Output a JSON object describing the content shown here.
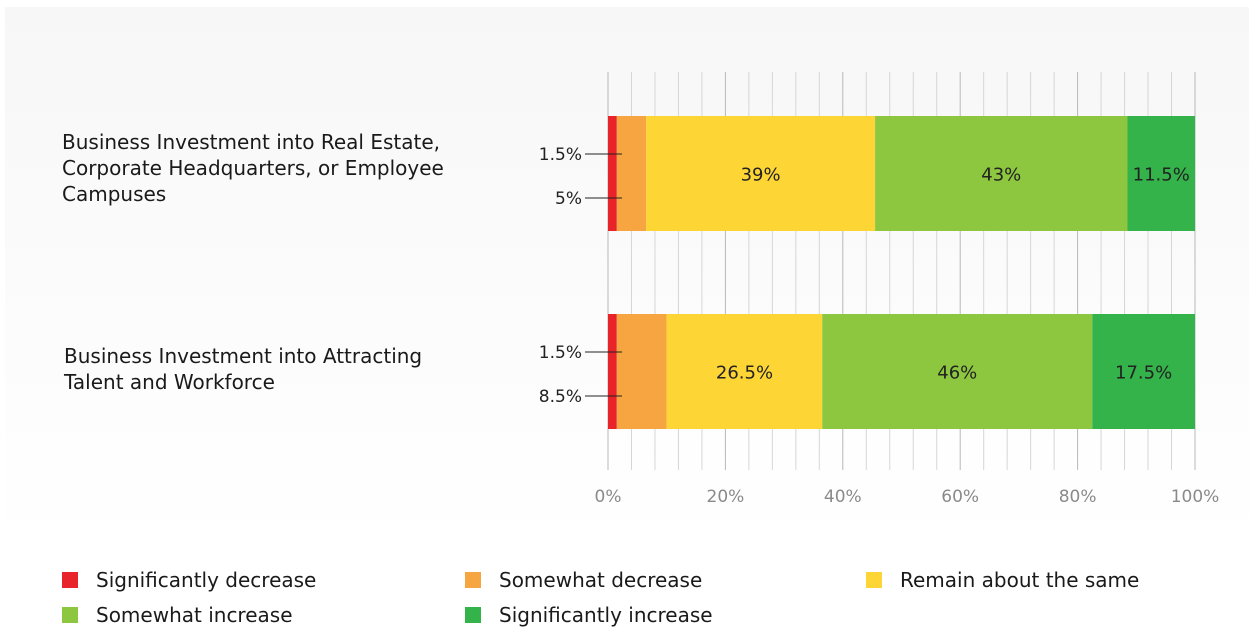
{
  "chart_data": {
    "type": "bar",
    "orientation": "horizontal",
    "stacked": true,
    "categories": [
      "Business Investment into Real Estate, Corporate Headquarters, or Employee Campuses",
      "Business Investment into Attracting Talent and Workforce"
    ],
    "series": [
      {
        "name": "Significantly decrease",
        "color": "#e8232a",
        "values": [
          1.5,
          1.5
        ],
        "labels": [
          "1.5%",
          "1.5%"
        ]
      },
      {
        "name": "Somewhat decrease",
        "color": "#f7a540",
        "values": [
          5,
          8.5
        ],
        "labels": [
          "5%",
          "8.5%"
        ]
      },
      {
        "name": "Remain about the same",
        "color": "#fdd535",
        "values": [
          39,
          26.5
        ],
        "labels": [
          "39%",
          "26.5%"
        ]
      },
      {
        "name": "Somewhat increase",
        "color": "#8dc63f",
        "values": [
          43,
          46
        ],
        "labels": [
          "43%",
          "46%"
        ]
      },
      {
        "name": "Significantly increase",
        "color": "#34b34a",
        "values": [
          11.5,
          17.5
        ],
        "labels": [
          "11.5%",
          "17.5%"
        ]
      }
    ],
    "xlim": [
      0,
      100
    ],
    "x_ticks": [
      "0%",
      "20%",
      "40%",
      "60%",
      "80%",
      "100%"
    ],
    "grid": true,
    "legend_position": "bottom"
  }
}
